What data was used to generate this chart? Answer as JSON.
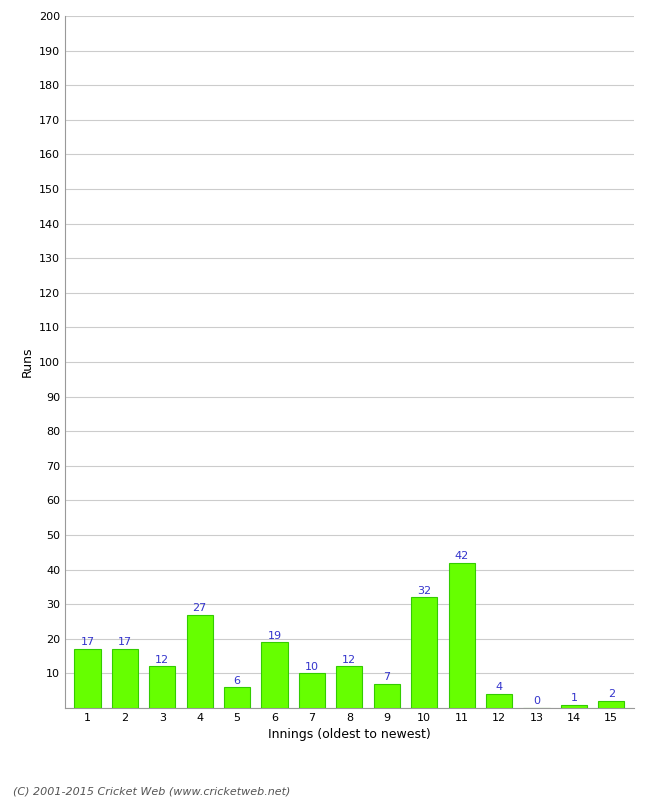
{
  "categories": [
    "1",
    "2",
    "3",
    "4",
    "5",
    "6",
    "7",
    "8",
    "9",
    "10",
    "11",
    "12",
    "13",
    "14",
    "15"
  ],
  "values": [
    17,
    17,
    12,
    27,
    6,
    19,
    10,
    12,
    7,
    32,
    42,
    4,
    0,
    1,
    2
  ],
  "bar_color": "#66ff00",
  "bar_edge_color": "#33cc00",
  "label_color": "#3333cc",
  "ylabel": "Runs",
  "xlabel": "Innings (oldest to newest)",
  "ylim": [
    0,
    200
  ],
  "yticks": [
    0,
    10,
    20,
    30,
    40,
    50,
    60,
    70,
    80,
    90,
    100,
    110,
    120,
    130,
    140,
    150,
    160,
    170,
    180,
    190,
    200
  ],
  "background_color": "#ffffff",
  "grid_color": "#cccccc",
  "footer": "(C) 2001-2015 Cricket Web (www.cricketweb.net)",
  "axis_label_fontsize": 9,
  "value_label_fontsize": 8,
  "tick_fontsize": 8,
  "footer_fontsize": 8
}
